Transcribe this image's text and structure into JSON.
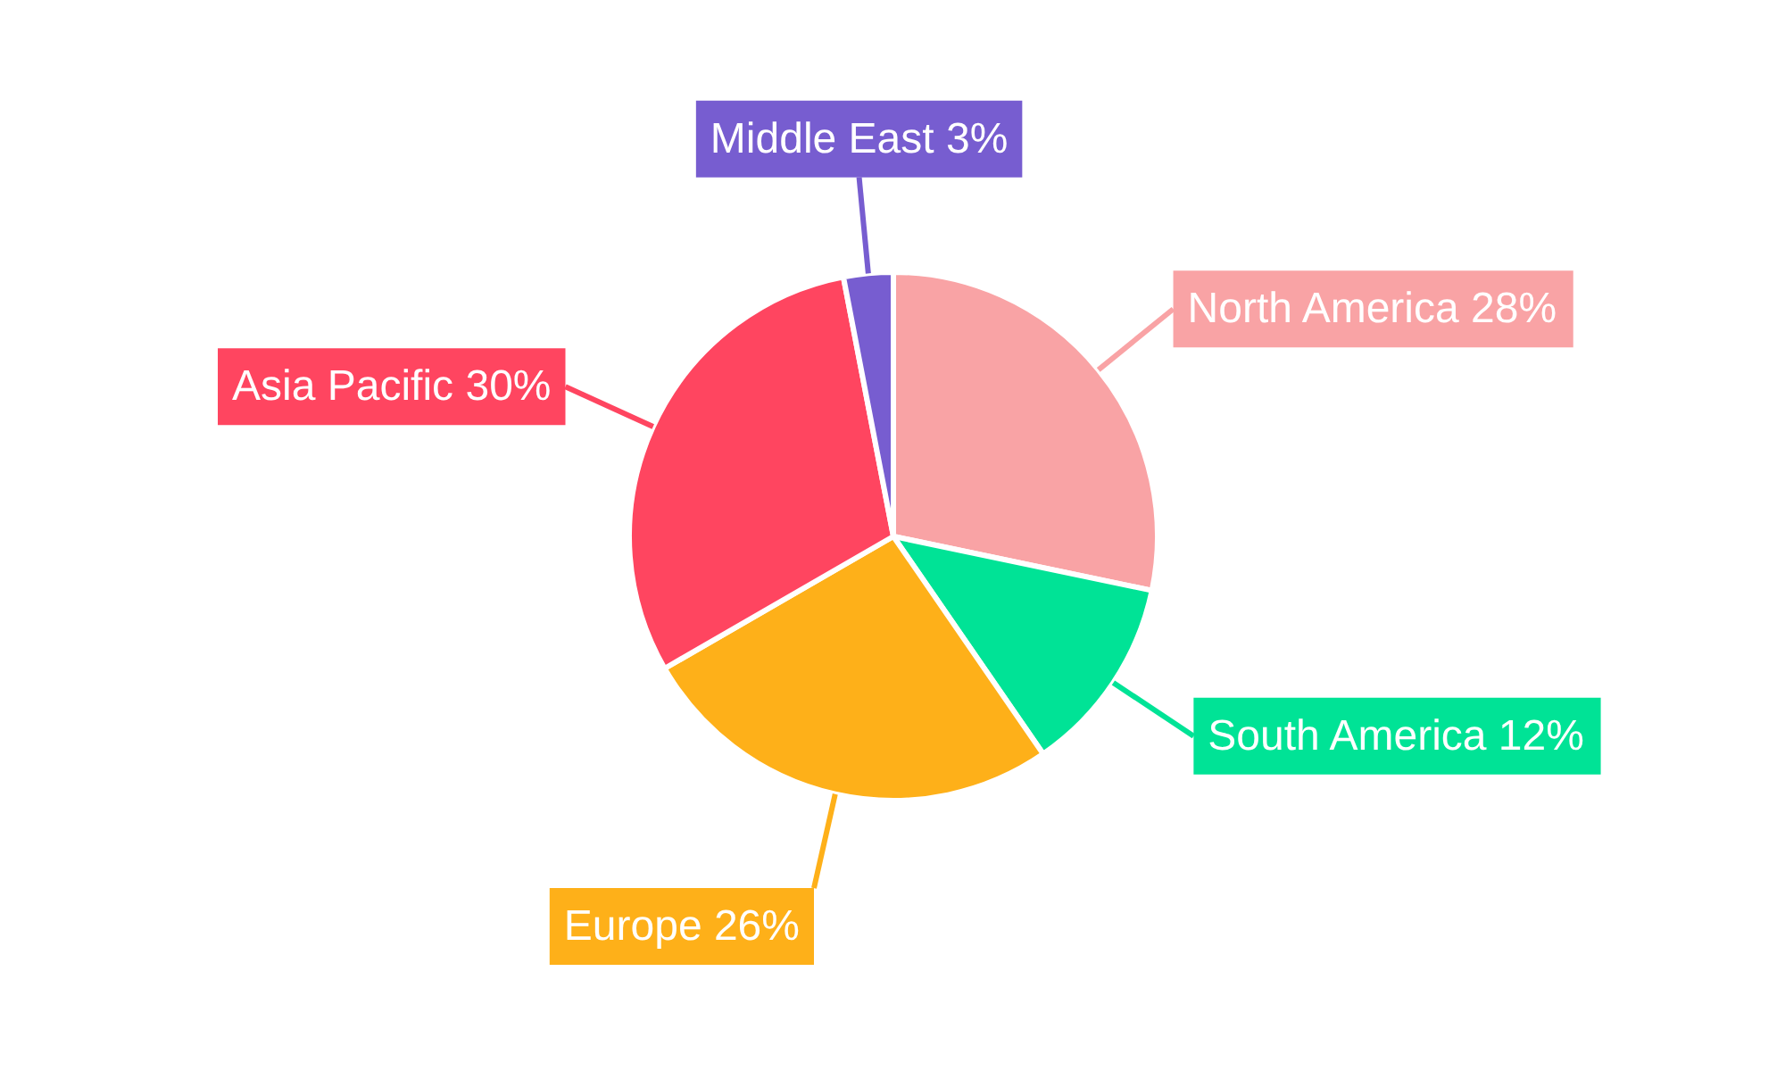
{
  "chart_data": {
    "type": "pie",
    "categories": [
      "North America",
      "South America",
      "Europe",
      "Asia Pacific",
      "Middle East"
    ],
    "values": [
      28,
      12,
      26,
      30,
      3
    ],
    "value_labels": [
      "28%",
      "12%",
      "26%",
      "30%",
      "3%"
    ],
    "colors": [
      "#f9a3a5",
      "#00e396",
      "#feb019",
      "#ff4560",
      "#775dd0"
    ]
  }
}
